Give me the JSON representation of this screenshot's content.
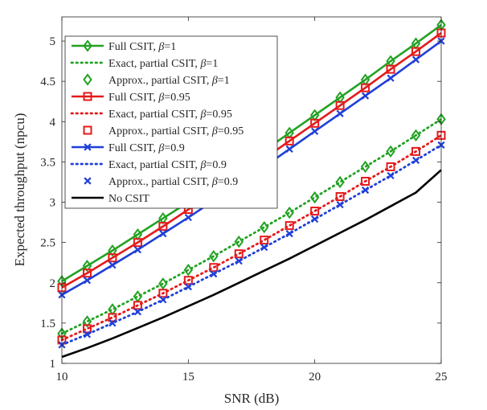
{
  "chart_data": {
    "type": "line",
    "title": "",
    "xlabel": "SNR (dB)",
    "ylabel": "Expected throughput (npcu)",
    "xlim": [
      10,
      25
    ],
    "ylim": [
      1,
      5.3
    ],
    "xticks": [
      10,
      15,
      20,
      25
    ],
    "yticks": [
      1,
      1.5,
      2,
      2.5,
      3,
      3.5,
      4,
      4.5,
      5
    ],
    "x": [
      10,
      11,
      12,
      13,
      14,
      15,
      16,
      17,
      18,
      19,
      20,
      21,
      22,
      23,
      24,
      25
    ],
    "grid": false,
    "legend_position": "top-left",
    "series": [
      {
        "name": "Full CSIT, β=1",
        "label_prefix": "Full CSIT, ",
        "beta": "1",
        "color": "#22a222",
        "style": "solid",
        "marker": "diamond",
        "values": [
          2.02,
          2.21,
          2.4,
          2.6,
          2.8,
          3.0,
          3.21,
          3.42,
          3.64,
          3.86,
          4.08,
          4.3,
          4.52,
          4.75,
          4.97,
          5.2
        ]
      },
      {
        "name": "Exact, partial CSIT, β=1",
        "label_prefix": "Exact, partial CSIT, ",
        "beta": "1",
        "color": "#22a222",
        "style": "dotted",
        "marker": "none",
        "values": [
          1.37,
          1.52,
          1.67,
          1.83,
          1.99,
          2.16,
          2.33,
          2.51,
          2.69,
          2.87,
          3.06,
          3.25,
          3.44,
          3.63,
          3.83,
          4.03
        ]
      },
      {
        "name": "Approx., partial CSIT, β=1",
        "label_prefix": "Approx., partial CSIT, ",
        "beta": "1",
        "color": "#22a222",
        "style": "none",
        "marker": "diamond",
        "values": [
          1.37,
          1.52,
          1.67,
          1.83,
          1.99,
          2.16,
          2.33,
          2.51,
          2.69,
          2.87,
          3.06,
          3.25,
          3.44,
          3.63,
          3.83,
          4.03
        ]
      },
      {
        "name": "Full CSIT, β=0.95",
        "label_prefix": "Full CSIT, ",
        "beta": "0.95",
        "color": "#e41a1a",
        "style": "solid",
        "marker": "square",
        "values": [
          1.94,
          2.12,
          2.31,
          2.5,
          2.7,
          2.91,
          3.11,
          3.32,
          3.54,
          3.76,
          3.98,
          4.2,
          4.42,
          4.65,
          4.87,
          5.1
        ]
      },
      {
        "name": "Exact, partial CSIT, β=0.95",
        "label_prefix": "Exact, partial CSIT, ",
        "beta": "0.95",
        "color": "#e41a1a",
        "style": "dotted",
        "marker": "none",
        "values": [
          1.29,
          1.43,
          1.57,
          1.72,
          1.87,
          2.03,
          2.19,
          2.36,
          2.53,
          2.71,
          2.89,
          3.07,
          3.26,
          3.44,
          3.63,
          3.83
        ]
      },
      {
        "name": "Approx., partial CSIT, β=0.95",
        "label_prefix": "Approx., partial CSIT, ",
        "beta": "0.95",
        "color": "#e41a1a",
        "style": "none",
        "marker": "square",
        "values": [
          1.29,
          1.43,
          1.57,
          1.72,
          1.87,
          2.03,
          2.19,
          2.36,
          2.53,
          2.71,
          2.89,
          3.07,
          3.26,
          3.44,
          3.63,
          3.83
        ]
      },
      {
        "name": "Full CSIT, β=0.9",
        "label_prefix": "Full CSIT, ",
        "beta": "0.9",
        "color": "#1f3fd8",
        "style": "solid",
        "marker": "x",
        "values": [
          1.85,
          2.03,
          2.22,
          2.41,
          2.61,
          2.81,
          3.02,
          3.23,
          3.44,
          3.66,
          3.88,
          4.1,
          4.32,
          4.54,
          4.77,
          5.0
        ]
      },
      {
        "name": "Exact, partial CSIT, β=0.9",
        "label_prefix": "Exact, partial CSIT, ",
        "beta": "0.9",
        "color": "#1f3fd8",
        "style": "dotted",
        "marker": "none",
        "values": [
          1.23,
          1.36,
          1.5,
          1.64,
          1.79,
          1.95,
          2.11,
          2.27,
          2.44,
          2.61,
          2.79,
          2.97,
          3.15,
          3.33,
          3.52,
          3.71
        ]
      },
      {
        "name": "Approx., partial CSIT, β=0.9",
        "label_prefix": "Approx., partial CSIT, ",
        "beta": "0.9",
        "color": "#1f3fd8",
        "style": "none",
        "marker": "x",
        "values": [
          1.23,
          1.36,
          1.5,
          1.64,
          1.79,
          1.95,
          2.11,
          2.27,
          2.44,
          2.61,
          2.79,
          2.97,
          3.15,
          3.33,
          3.52,
          3.71
        ]
      },
      {
        "name": "No CSIT",
        "label_prefix": "No CSIT",
        "beta": "",
        "color": "#000000",
        "style": "solid",
        "marker": "none",
        "values": [
          1.08,
          1.19,
          1.31,
          1.44,
          1.57,
          1.71,
          1.85,
          2.0,
          2.15,
          2.3,
          2.46,
          2.62,
          2.78,
          2.95,
          3.12,
          3.4
        ]
      }
    ]
  }
}
